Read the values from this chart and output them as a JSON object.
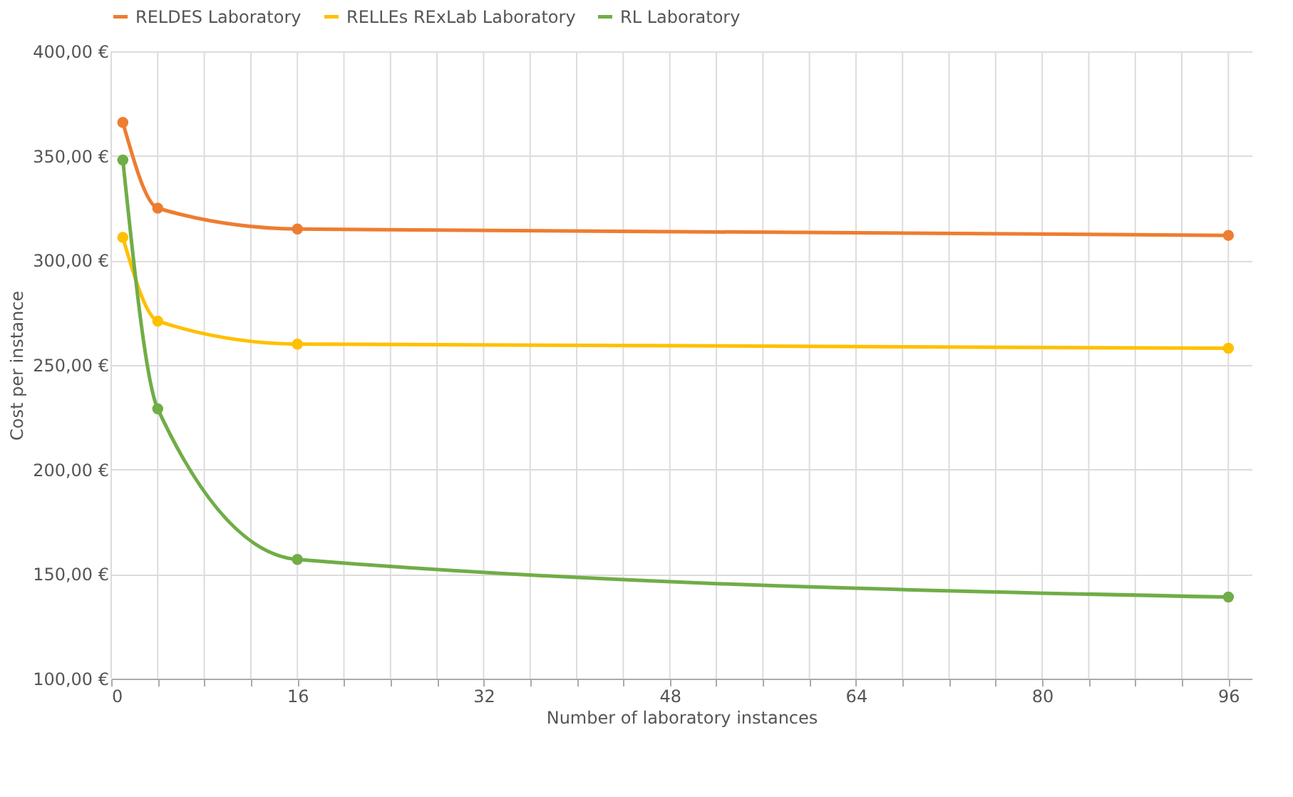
{
  "chart_data": {
    "type": "line",
    "xlabel": "Number of laboratory instances",
    "ylabel": "Cost per instance",
    "xlim": [
      0,
      98
    ],
    "ylim": [
      100,
      400
    ],
    "xticks": [
      0,
      {
        "value": 4,
        "label": null
      },
      {
        "value": 8,
        "label": null
      },
      {
        "value": 12,
        "label": null
      },
      16,
      {
        "value": 20,
        "label": null
      },
      {
        "value": 24,
        "label": null
      },
      {
        "value": 28,
        "label": null
      },
      32,
      {
        "value": 36,
        "label": null
      },
      {
        "value": 40,
        "label": null
      },
      {
        "value": 44,
        "label": null
      },
      48,
      {
        "value": 52,
        "label": null
      },
      {
        "value": 56,
        "label": null
      },
      {
        "value": 60,
        "label": null
      },
      64,
      {
        "value": 68,
        "label": null
      },
      {
        "value": 72,
        "label": null
      },
      {
        "value": 76,
        "label": null
      },
      80,
      {
        "value": 84,
        "label": null
      },
      {
        "value": 88,
        "label": null
      },
      {
        "value": 92,
        "label": null
      },
      96
    ],
    "yticks": [
      {
        "value": 100,
        "label": "100,00 €"
      },
      {
        "value": 150,
        "label": "150,00 €"
      },
      {
        "value": 200,
        "label": "200,00 €"
      },
      {
        "value": 250,
        "label": "250,00 €"
      },
      {
        "value": 300,
        "label": "300,00 €"
      },
      {
        "value": 350,
        "label": "350,00 €"
      },
      {
        "value": 400,
        "label": "400,00 €"
      }
    ],
    "x": [
      1,
      4,
      16,
      96
    ],
    "series": [
      {
        "name": "RELDES Laboratory",
        "color": "#ed7d31",
        "values": [
          366,
          325,
          315,
          312
        ]
      },
      {
        "name": "RELLEs RExLab Laboratory",
        "color": "#ffc000",
        "values": [
          311,
          271,
          260,
          258
        ]
      },
      {
        "name": "RL Laboratory",
        "color": "#70ad47",
        "values": [
          348,
          229,
          157,
          139
        ]
      }
    ],
    "marker": "circle",
    "line_style": "solid",
    "grid": true,
    "legend": "top"
  }
}
